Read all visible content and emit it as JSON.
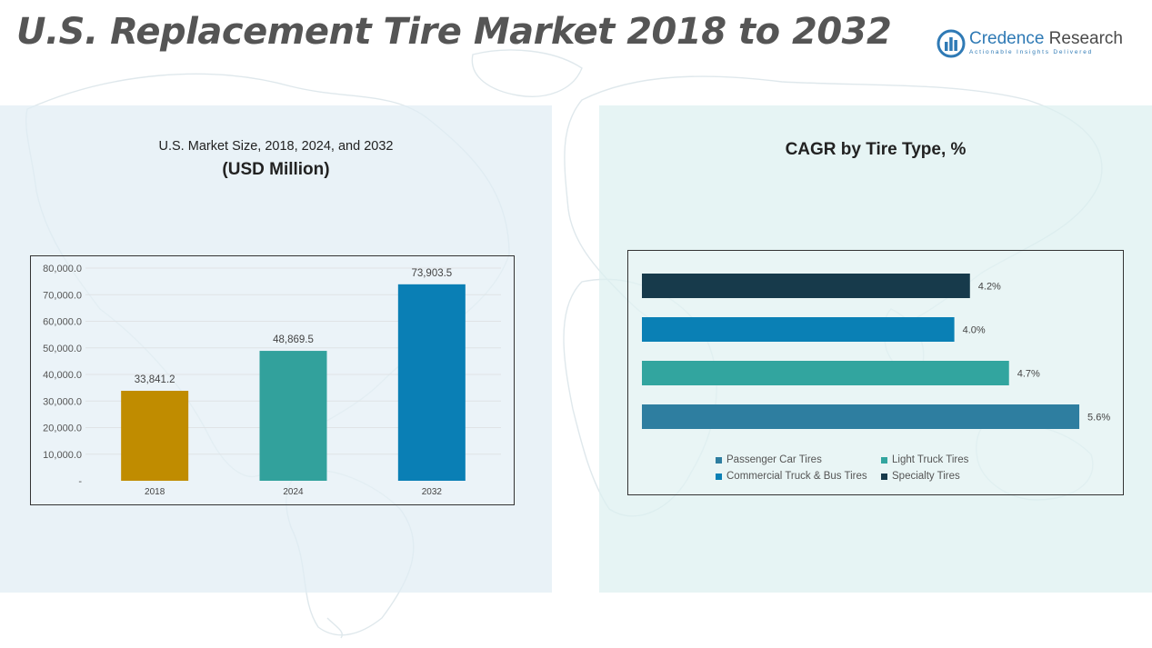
{
  "page": {
    "title": "U.S. Replacement Tire Market 2018 to 2032"
  },
  "logo": {
    "name_part1": "Credence",
    "name_part2": "Research",
    "tagline": "Actionable Insights Delivered"
  },
  "colors": {
    "title": "#555555",
    "brand": "#2f7ab5",
    "bar_2018": "#c08c00",
    "bar_2024": "#32a19c",
    "bar_2032": "#0a7fb5",
    "passenger_car": "#2e7ea0",
    "light_truck": "#32a59f",
    "commercial_truck_bus": "#0a80b5",
    "specialty": "#173a4b"
  },
  "chart_data": [
    {
      "type": "bar",
      "title": "U.S. Market Size, 2018, 2024, and 2032",
      "subtitle": "(USD Million)",
      "categories": [
        "2018",
        "2024",
        "2032"
      ],
      "values": [
        33841.2,
        48869.5,
        73903.5
      ],
      "value_labels": [
        "33,841.2",
        "48,869.5",
        "73,903.5"
      ],
      "ylim": [
        0,
        80000
      ],
      "yticks": [
        "-",
        "10,000.0",
        "20,000.0",
        "30,000.0",
        "40,000.0",
        "50,000.0",
        "60,000.0",
        "70,000.0",
        "80,000.0"
      ],
      "grid": true
    },
    {
      "type": "bar",
      "orientation": "horizontal",
      "title": "CAGR by Tire Type, %",
      "series": [
        {
          "name": "Specialty Tires",
          "value": 4.2,
          "label": "4.2%"
        },
        {
          "name": "Commercial Truck & Bus Tires",
          "value": 4.0,
          "label": "4.0%"
        },
        {
          "name": "Light Truck Tires",
          "value": 4.7,
          "label": "4.7%"
        },
        {
          "name": "Passenger Car Tires",
          "value": 5.6,
          "label": "5.6%"
        }
      ],
      "legend": {
        "placement": "bottom",
        "items": [
          "Passenger Car Tires",
          "Light Truck Tires",
          "Commercial Truck & Bus Tires",
          "Specialty Tires"
        ]
      },
      "grid": false
    }
  ]
}
